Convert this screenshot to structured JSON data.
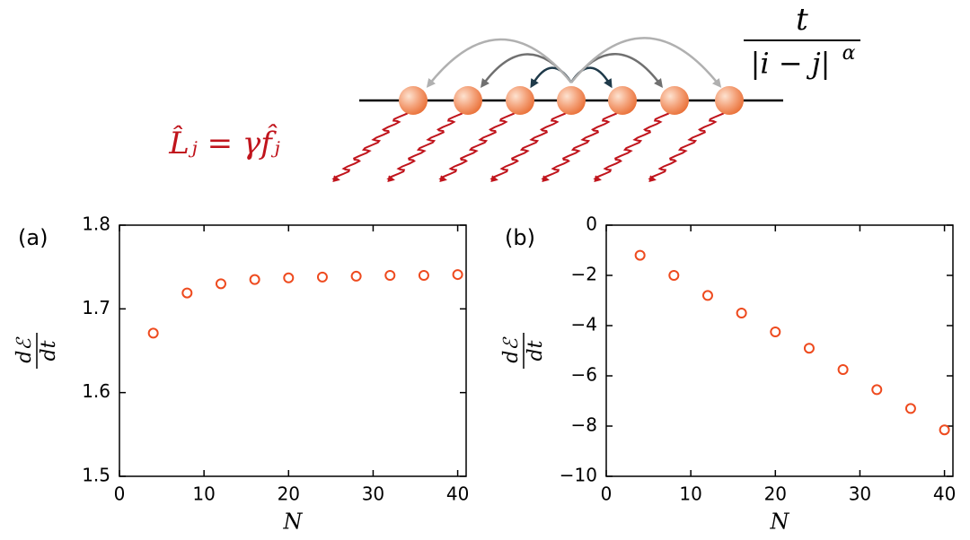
{
  "diagram": {
    "hopping": {
      "numerator": "t",
      "denominator": "|i − j|",
      "exponent": "α"
    },
    "jump_operator": "L̂ⱼ = γf̂ⱼ"
  },
  "chart_data": [
    {
      "type": "scatter",
      "panel": "(a)",
      "xlabel": "N",
      "ylabel": {
        "numerator": "dℰ",
        "denominator": "dt"
      },
      "x": [
        4,
        8,
        12,
        16,
        20,
        24,
        28,
        32,
        36,
        40
      ],
      "series": [
        {
          "color": "#ee4a1e",
          "values": [
            1.671,
            1.719,
            1.73,
            1.735,
            1.737,
            1.738,
            1.739,
            1.74,
            1.74,
            1.741
          ]
        }
      ],
      "xlim": [
        0,
        41
      ],
      "xticks": [
        0,
        10,
        20,
        30,
        40
      ],
      "ylim": [
        1.5,
        1.8
      ],
      "yticks": [
        1.5,
        1.6,
        1.7,
        1.8
      ]
    },
    {
      "type": "scatter",
      "panel": "(b)",
      "xlabel": "N",
      "ylabel": {
        "numerator": "dℰ",
        "denominator": "dt"
      },
      "x": [
        4,
        8,
        12,
        16,
        20,
        24,
        28,
        32,
        36,
        40
      ],
      "series": [
        {
          "color": "#ee4a1e",
          "values": [
            -1.2,
            -2.0,
            -2.8,
            -3.5,
            -4.25,
            -4.9,
            -5.75,
            -6.55,
            -7.3,
            -8.15
          ]
        }
      ],
      "xlim": [
        0,
        41
      ],
      "xticks": [
        0,
        10,
        20,
        30,
        40
      ],
      "ylim": [
        -10,
        0
      ],
      "yticks": [
        0,
        {
          "value": -2,
          "label": "−2"
        },
        {
          "value": -4,
          "label": "−4"
        },
        {
          "value": -6,
          "label": "−6"
        },
        {
          "value": -8,
          "label": "−8"
        },
        {
          "value": -10,
          "label": "−10"
        }
      ]
    }
  ]
}
